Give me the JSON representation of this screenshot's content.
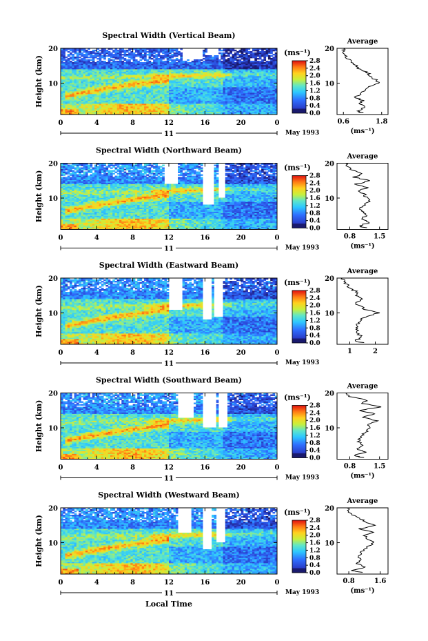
{
  "figure": {
    "xlabel": "Local Time",
    "date_label": "May 1993",
    "day_label": "11"
  },
  "chart_data": [
    {
      "type": "heatmap",
      "title": "Spectral Width (Vertical Beam)",
      "ylabel": "Height (km)",
      "xticks": [
        "0",
        "4",
        "8",
        "12",
        "16",
        "20",
        "0"
      ],
      "yticks": [
        "10",
        "20"
      ],
      "xlim": [
        0,
        24
      ],
      "ylim": [
        1,
        20
      ],
      "colorbar": {
        "unit": "(ms⁻¹)",
        "ticks": [
          "0.0",
          "0.4",
          "0.8",
          "1.2",
          "1.6",
          "2.0",
          "2.4",
          "2.8"
        ],
        "range": [
          0,
          2.8
        ]
      },
      "gaps": [
        [
          13.5,
          15.8,
          17,
          20
        ],
        [
          16.2,
          17.4,
          18,
          20
        ]
      ],
      "average": {
        "title": "Average",
        "xlabel": "(ms⁻¹)",
        "xticks": [
          "0.6",
          "1.8"
        ],
        "xlim": [
          0.4,
          2.0
        ],
        "profile": [
          [
            1.5,
            1.2
          ],
          [
            2,
            1.0
          ],
          [
            3,
            1.3
          ],
          [
            4,
            1.1
          ],
          [
            5,
            1.2
          ],
          [
            6,
            1.0
          ],
          [
            7,
            1.15
          ],
          [
            8,
            1.3
          ],
          [
            9,
            1.45
          ],
          [
            10,
            1.7
          ],
          [
            11,
            1.6
          ],
          [
            12,
            1.45
          ],
          [
            13,
            1.35
          ],
          [
            14,
            1.1
          ],
          [
            15,
            1.0
          ],
          [
            16,
            0.85
          ],
          [
            17,
            0.75
          ],
          [
            18,
            0.68
          ],
          [
            19,
            0.62
          ],
          [
            20,
            0.6
          ]
        ]
      }
    },
    {
      "type": "heatmap",
      "title": "Spectral Width (Northward Beam)",
      "ylabel": "Height (km)",
      "xticks": [
        "0",
        "4",
        "8",
        "12",
        "16",
        "20",
        "0"
      ],
      "yticks": [
        "10",
        "20"
      ],
      "xlim": [
        0,
        24
      ],
      "ylim": [
        1,
        20
      ],
      "colorbar": {
        "unit": "(ms⁻¹)",
        "ticks": [
          "0.0",
          "0.4",
          "0.8",
          "1.2",
          "1.6",
          "2.0",
          "2.4",
          "2.8"
        ],
        "range": [
          0,
          2.8
        ]
      },
      "gaps": [
        [
          11.5,
          13.0,
          14,
          20
        ],
        [
          15.8,
          17.0,
          8,
          20
        ],
        [
          17.5,
          18.2,
          10,
          20
        ]
      ],
      "average": {
        "title": "Average",
        "xlabel": "(ms⁻¹)",
        "xticks": [
          "0.8",
          "1.5"
        ],
        "xlim": [
          0.5,
          1.7
        ],
        "profile": [
          [
            1.5,
            1.2
          ],
          [
            2,
            1.0
          ],
          [
            3,
            1.3
          ],
          [
            4,
            1.05
          ],
          [
            5,
            1.2
          ],
          [
            6,
            1.1
          ],
          [
            7,
            1.05
          ],
          [
            8,
            1.15
          ],
          [
            9,
            1.25
          ],
          [
            10,
            1.2
          ],
          [
            11,
            1.15
          ],
          [
            12,
            1.0
          ],
          [
            13,
            1.2
          ],
          [
            14,
            0.95
          ],
          [
            15,
            1.25
          ],
          [
            16,
            0.9
          ],
          [
            17,
            1.1
          ],
          [
            18,
            0.85
          ],
          [
            19,
            0.75
          ],
          [
            20,
            0.7
          ]
        ]
      }
    },
    {
      "type": "heatmap",
      "title": "Spectral Width (Eastward Beam)",
      "ylabel": "Height (km)",
      "xticks": [
        "0",
        "4",
        "8",
        "12",
        "16",
        "20",
        "0"
      ],
      "yticks": [
        "10",
        "20"
      ],
      "xlim": [
        0,
        24
      ],
      "ylim": [
        1,
        20
      ],
      "colorbar": {
        "unit": "(ms⁻¹)",
        "ticks": [
          "0.0",
          "0.4",
          "0.8",
          "1.2",
          "1.6",
          "2.0",
          "2.4",
          "2.8"
        ],
        "range": [
          0,
          2.8
        ]
      },
      "gaps": [
        [
          12.0,
          13.5,
          11,
          20
        ],
        [
          15.8,
          16.8,
          8,
          20
        ],
        [
          17.0,
          18.0,
          9,
          20
        ]
      ],
      "average": {
        "title": "Average",
        "xlabel": "",
        "xticks": [
          "1",
          "2"
        ],
        "xlim": [
          0.5,
          2.5
        ],
        "profile": [
          [
            1.5,
            1.5
          ],
          [
            2,
            1.2
          ],
          [
            3,
            1.5
          ],
          [
            4,
            1.3
          ],
          [
            5,
            1.3
          ],
          [
            6,
            1.25
          ],
          [
            7,
            1.3
          ],
          [
            8,
            1.4
          ],
          [
            9,
            1.7
          ],
          [
            10,
            2.1
          ],
          [
            11,
            1.6
          ],
          [
            12,
            1.4
          ],
          [
            13,
            1.2
          ],
          [
            14,
            1.5
          ],
          [
            15,
            1.2
          ],
          [
            16,
            1.3
          ],
          [
            17,
            1.0
          ],
          [
            18,
            0.9
          ],
          [
            19,
            0.8
          ],
          [
            20,
            0.7
          ]
        ]
      }
    },
    {
      "type": "heatmap",
      "title": "Spectral Width (Southward Beam)",
      "ylabel": "Height (km)",
      "xticks": [
        "0",
        "4",
        "8",
        "12",
        "16",
        "20",
        "0"
      ],
      "yticks": [
        "10",
        "20"
      ],
      "xlim": [
        0,
        24
      ],
      "ylim": [
        1,
        20
      ],
      "colorbar": {
        "unit": "(ms⁻¹)",
        "ticks": [
          "0.0",
          "0.4",
          "0.8",
          "1.2",
          "1.6",
          "2.0",
          "2.4",
          "2.8"
        ],
        "range": [
          0,
          2.8
        ]
      },
      "gaps": [
        [
          13.0,
          14.8,
          13,
          20
        ],
        [
          15.8,
          17.2,
          10,
          20
        ],
        [
          17.5,
          18.5,
          10,
          20
        ]
      ],
      "average": {
        "title": "Average",
        "xlabel": "(ms⁻¹)",
        "xticks": [
          "0.8",
          "1.5"
        ],
        "xlim": [
          0.5,
          1.7
        ],
        "profile": [
          [
            1.5,
            1.1
          ],
          [
            2,
            0.9
          ],
          [
            3,
            1.2
          ],
          [
            4,
            0.95
          ],
          [
            5,
            1.1
          ],
          [
            6,
            1.0
          ],
          [
            7,
            1.05
          ],
          [
            8,
            1.1
          ],
          [
            9,
            1.2
          ],
          [
            10,
            1.3
          ],
          [
            11,
            1.2
          ],
          [
            12,
            1.45
          ],
          [
            13,
            1.1
          ],
          [
            14,
            1.4
          ],
          [
            15,
            1.0
          ],
          [
            16,
            1.5
          ],
          [
            17,
            1.1
          ],
          [
            18,
            1.2
          ],
          [
            19,
            0.8
          ],
          [
            20,
            0.7
          ]
        ]
      }
    },
    {
      "type": "heatmap",
      "title": "Spectral Width (Westward Beam)",
      "ylabel": "Height (km)",
      "xticks": [
        "0",
        "4",
        "8",
        "12",
        "16",
        "20",
        "0"
      ],
      "yticks": [
        "10",
        "20"
      ],
      "xlim": [
        0,
        24
      ],
      "ylim": [
        1,
        20
      ],
      "colorbar": {
        "unit": "(ms⁻¹)",
        "ticks": [
          "0.0",
          "0.4",
          "0.8",
          "1.2",
          "1.6",
          "2.0",
          "2.4",
          "2.8"
        ],
        "range": [
          0,
          2.8
        ]
      },
      "gaps": [
        [
          13.0,
          14.5,
          13,
          20
        ],
        [
          15.8,
          16.8,
          8,
          20
        ],
        [
          17.2,
          18.2,
          10,
          20
        ]
      ],
      "average": {
        "title": "Average",
        "xlabel": "(ms⁻¹)",
        "xticks": [
          "0.8",
          "1.6"
        ],
        "xlim": [
          0.5,
          1.8
        ],
        "profile": [
          [
            1.5,
            1.1
          ],
          [
            2,
            0.9
          ],
          [
            3,
            1.2
          ],
          [
            4,
            1.0
          ],
          [
            5,
            1.15
          ],
          [
            6,
            1.05
          ],
          [
            7,
            1.1
          ],
          [
            8,
            1.2
          ],
          [
            9,
            1.3
          ],
          [
            10,
            1.45
          ],
          [
            11,
            1.3
          ],
          [
            12,
            1.2
          ],
          [
            13,
            1.4
          ],
          [
            14,
            1.1
          ],
          [
            15,
            1.5
          ],
          [
            16,
            1.2
          ],
          [
            17,
            1.1
          ],
          [
            18,
            0.9
          ],
          [
            19,
            0.8
          ],
          [
            20,
            0.75
          ]
        ]
      }
    }
  ]
}
